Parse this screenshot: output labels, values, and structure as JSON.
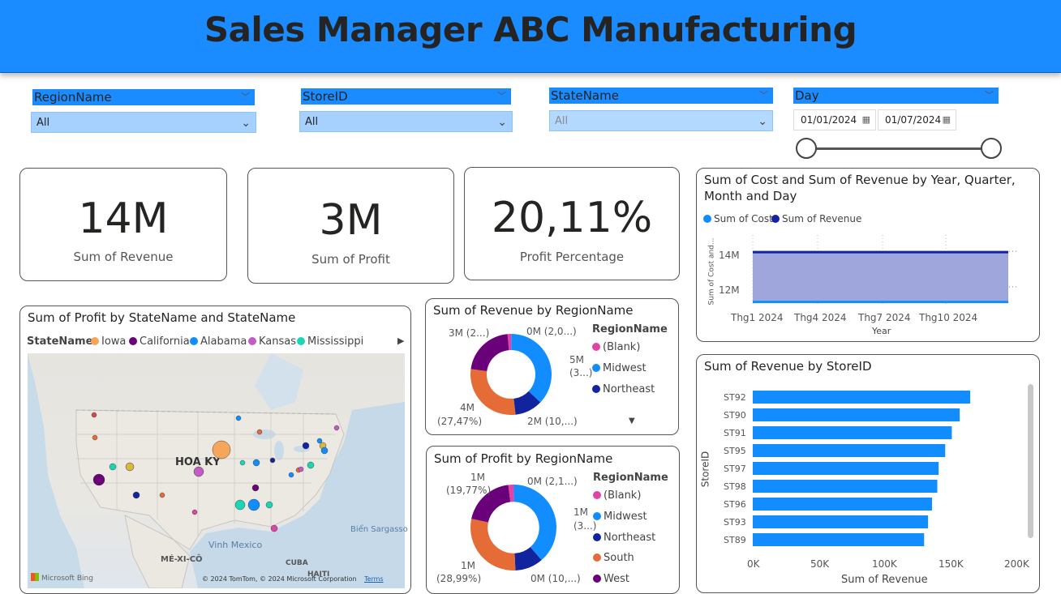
{
  "header": {
    "title": "Sales Manager ABC Manufacturing"
  },
  "slicers": {
    "region": {
      "title": "RegionName",
      "value": "All"
    },
    "store": {
      "title": "StoreID",
      "value": "All"
    },
    "state": {
      "title": "StateName",
      "value": "All"
    },
    "day": {
      "title": "Day",
      "start": "01/01/2024",
      "end": "01/07/2024"
    }
  },
  "kpis": {
    "revenue": {
      "value": "14M",
      "label": "Sum of Revenue"
    },
    "profit": {
      "value": "3M",
      "label": "Sum of Profit"
    },
    "percentage": {
      "value": "20,11%",
      "label": "Profit Percentage"
    }
  },
  "map_visual": {
    "title": "Sum of Profit by StateName and StateName",
    "legend_label": "StateName",
    "legend": [
      {
        "name": "Iowa",
        "color": "#f5a65b"
      },
      {
        "name": "California",
        "color": "#6b007b"
      },
      {
        "name": "Alabama",
        "color": "#118dff"
      },
      {
        "name": "Kansas",
        "color": "#c25bc5"
      },
      {
        "name": "Mississippi",
        "color": "#1ad6b6"
      }
    ],
    "labels": {
      "us": "HOA KỲ",
      "mexico": "MÉ-XI-CÔ",
      "gulf": "Vinh Mexico",
      "sargasso": "Biển Sargasso",
      "cuba": "CUBA",
      "haiti": "HAITI"
    },
    "brand": "Microsoft Bing",
    "copyright": "© 2024 TomTom, © 2024 Microsoft Corporation",
    "terms": "Terms",
    "scroll_icon": "triangle-right-icon"
  },
  "revenue_region": {
    "title": "Sum of Revenue by RegionName",
    "legend_title": "RegionName",
    "legend": [
      {
        "name": "(Blank)",
        "color": "#e044a7"
      },
      {
        "name": "Midwest",
        "color": "#118dff"
      },
      {
        "name": "Northeast",
        "color": "#12239e"
      }
    ],
    "data_labels": {
      "top_left": "3M (2...)",
      "top": "0M (2,0...)",
      "right_1": "5M",
      "right_2": "(3...)",
      "left_1": "4M",
      "left_2": "(27,47%)",
      "bottom": "2M (10,...)"
    }
  },
  "profit_region": {
    "title": "Sum of Profit by RegionName",
    "legend_title": "RegionName",
    "legend": [
      {
        "name": "(Blank)",
        "color": "#e044a7"
      },
      {
        "name": "Midwest",
        "color": "#118dff"
      },
      {
        "name": "Northeast",
        "color": "#12239e"
      },
      {
        "name": "South",
        "color": "#e66c37"
      },
      {
        "name": "West",
        "color": "#6b007b"
      }
    ],
    "data_labels": {
      "top_left_1": "1M",
      "top_left_2": "(19,77%)",
      "top": "0M (2,1...)",
      "right_1": "1M",
      "right_2": "(3...)",
      "left_1": "1M",
      "left_2": "(28,99%)",
      "bottom": "0M (10,...)"
    }
  },
  "cost_revenue": {
    "title_line1": "Sum of Cost and Sum of Revenue by Year, Quarter,",
    "title_line2": "Month and Day",
    "legend": [
      {
        "name": "Sum of Cost",
        "color": "#118dff"
      },
      {
        "name": "Sum of Revenue",
        "color": "#12239e"
      }
    ],
    "ylabel": "Sum of Cost and...",
    "xlabel": "Year",
    "yticks": [
      "14M",
      "12M"
    ],
    "xticks": [
      "Thg1 2024",
      "Thg4 2024",
      "Thg7 2024",
      "Thg10 2024"
    ]
  },
  "store_revenue": {
    "title": "Sum of Revenue by StoreID",
    "ylabel": "StoreID",
    "xlabel": "Sum of Revenue",
    "xticks": [
      "0K",
      "50K",
      "100K",
      "150K",
      "200K"
    ]
  },
  "chart_data": [
    {
      "type": "pie",
      "title": "Sum of Revenue by RegionName",
      "categories": [
        "(Blank)",
        "Midwest",
        "Northeast",
        "South",
        "West"
      ],
      "values": [
        0.2,
        5,
        1.5,
        3.9,
        2.9
      ],
      "colors": [
        "#e044a7",
        "#118dff",
        "#12239e",
        "#e66c37",
        "#6b007b"
      ]
    },
    {
      "type": "pie",
      "title": "Sum of Profit by RegionName",
      "categories": [
        "(Blank)",
        "Midwest",
        "Northeast",
        "South",
        "West"
      ],
      "values": [
        2.1,
        38.5,
        10.6,
        28.99,
        19.77
      ],
      "colors": [
        "#e044a7",
        "#118dff",
        "#12239e",
        "#e66c37",
        "#6b007b"
      ]
    },
    {
      "type": "area",
      "title": "Sum of Cost and Sum of Revenue by Year, Quarter, Month and Day",
      "x": [
        "Thg1 2024",
        "Thg12 2024"
      ],
      "series": [
        {
          "name": "Sum of Cost",
          "values": [
            11.2,
            11.2
          ]
        },
        {
          "name": "Sum of Revenue",
          "values": [
            14.0,
            14.0
          ]
        }
      ],
      "ylim": [
        11,
        14.6
      ]
    },
    {
      "type": "bar",
      "title": "Sum of Revenue by StoreID",
      "categories": [
        "ST92",
        "ST90",
        "ST91",
        "ST95",
        "ST97",
        "ST98",
        "ST96",
        "ST93",
        "ST89"
      ],
      "values": [
        165000,
        157000,
        151000,
        146000,
        141000,
        140000,
        136000,
        133000,
        130000
      ],
      "xlim": [
        0,
        200000
      ]
    }
  ]
}
